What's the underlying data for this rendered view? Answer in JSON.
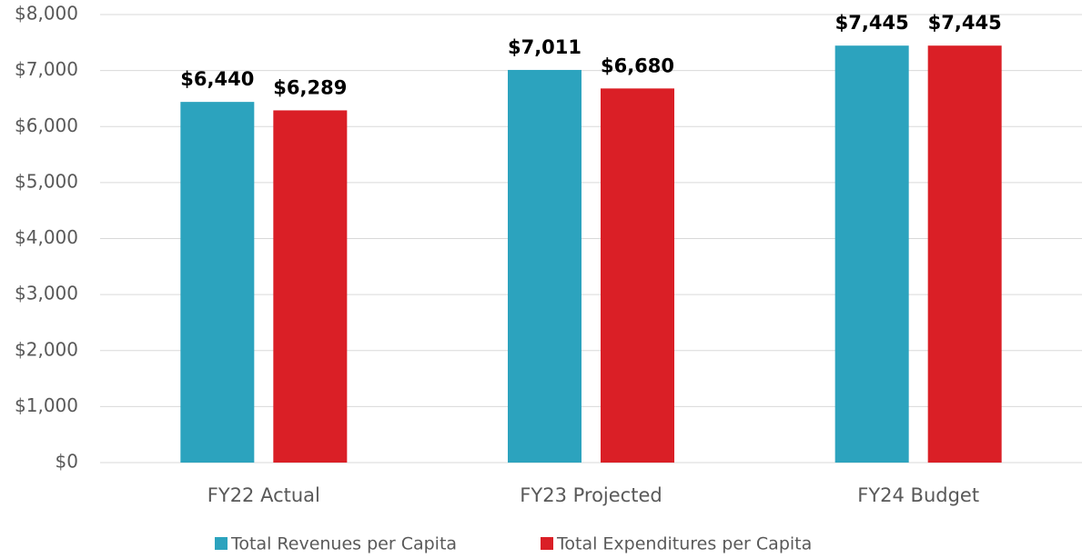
{
  "chart_data": {
    "type": "bar",
    "categories": [
      "FY22 Actual",
      "FY23 Projected",
      "FY24 Budget"
    ],
    "series": [
      {
        "name": "Total Revenues per Capita",
        "color": "#2ca3be",
        "values": [
          6440,
          7011,
          7445
        ],
        "value_labels": [
          "$6,440",
          "$7,011",
          "$7,445"
        ]
      },
      {
        "name": "Total Expenditures per Capita",
        "color": "#da1f26",
        "values": [
          6289,
          6680,
          7445
        ],
        "value_labels": [
          "$6,289",
          "$6,680",
          "$7,445"
        ]
      }
    ],
    "ylim": [
      0,
      8000
    ],
    "yticks": [
      {
        "value": 0,
        "label": "$0"
      },
      {
        "value": 1000,
        "label": "$1,000"
      },
      {
        "value": 2000,
        "label": "$2,000"
      },
      {
        "value": 3000,
        "label": "$3,000"
      },
      {
        "value": 4000,
        "label": "$4,000"
      },
      {
        "value": 5000,
        "label": "$5,000"
      },
      {
        "value": 6000,
        "label": "$6,000"
      },
      {
        "value": 7000,
        "label": "$7,000"
      },
      {
        "value": 8000,
        "label": "$8,000"
      }
    ],
    "grid": true,
    "legend": "bottom"
  }
}
